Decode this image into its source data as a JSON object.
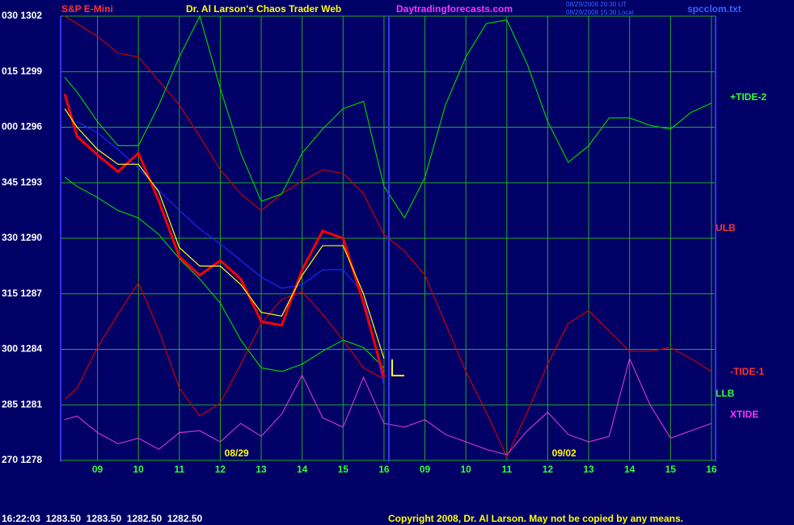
{
  "chart_data": {
    "type": "line",
    "title": "Dr. Al Larson's Chaos Trader Web",
    "symbol": "S&P E-Mini",
    "site": "Daytradingforecasts.com",
    "timestamps": [
      "08/29/2008 20:30 UT",
      "08/29/2008 15:30 Local"
    ],
    "file": "spcclom.txt",
    "quote": "16:22:03  1283.50  1283.50  1282.50  1282.50",
    "copyright": "Copyright 2008, Dr. Al Larson. May not be copied by any means.",
    "dates": [
      {
        "value": 3.4,
        "label": "08/29"
      },
      {
        "value": 11.4,
        "label": "09/02"
      }
    ],
    "annotations": [
      "ULB",
      "LLB"
    ],
    "grid": true,
    "xlim": [
      -0.9,
      15.1
    ],
    "xticks": [
      {
        "value": 0,
        "label": "09"
      },
      {
        "value": 1,
        "label": "10"
      },
      {
        "value": 2,
        "label": "11"
      },
      {
        "value": 3,
        "label": "12"
      },
      {
        "value": 4,
        "label": "13"
      },
      {
        "value": 5,
        "label": "14"
      },
      {
        "value": 6,
        "label": "15"
      },
      {
        "value": 7,
        "label": "16"
      },
      {
        "value": 8,
        "label": "09"
      },
      {
        "value": 9,
        "label": "10"
      },
      {
        "value": 10,
        "label": "11"
      },
      {
        "value": 11,
        "label": "12"
      },
      {
        "value": 12,
        "label": "13"
      },
      {
        "value": 13,
        "label": "14"
      },
      {
        "value": 14,
        "label": "15"
      },
      {
        "value": 15,
        "label": "16"
      }
    ],
    "ylim": [
      1278,
      1302
    ],
    "yticks": [
      {
        "value": 1278,
        "label": "270 1278"
      },
      {
        "value": 1281,
        "label": "285 1281"
      },
      {
        "value": 1284,
        "label": "300 1284"
      },
      {
        "value": 1287,
        "label": "315 1287"
      },
      {
        "value": 1290,
        "label": "330 1290"
      },
      {
        "value": 1293,
        "label": "345 1293"
      },
      {
        "value": 1296,
        "label": "000 1296"
      },
      {
        "value": 1299,
        "label": "015 1299"
      },
      {
        "value": 1302,
        "label": "030 1302"
      }
    ],
    "x": [
      -0.8,
      -0.5,
      0,
      0.5,
      1,
      1.5,
      2,
      2.5,
      3,
      3.5,
      4,
      4.5,
      5,
      5.5,
      6,
      6.5,
      7,
      7.5,
      8,
      8.5,
      9,
      9.5,
      10,
      10.5,
      11,
      11.5,
      12,
      12.5,
      13,
      13.5,
      14,
      14.5,
      15
    ],
    "series": [
      {
        "color": "#cc0000",
        "values": [
          1302,
          1301.6,
          1300.9,
          1300,
          1299.8,
          1298.5,
          1297.2,
          1295.5,
          1293.7,
          1292.4,
          1291.5,
          1292.4,
          1293.1,
          1293.7,
          1293.5,
          1292.4,
          1290.2,
          1289.3,
          1288,
          1285.4,
          1282.8,
          1280.6,
          1278.2,
          1280.6,
          1283.2,
          1285.4,
          1286.1,
          1285,
          1283.9,
          1283.9,
          1284.1,
          1283.5,
          1282.8
        ],
        "name": "-TIDE-1"
      },
      {
        "color": "#cc0000",
        "values": [
          1281.3,
          1281.9,
          1284.1,
          1285.9,
          1287.6,
          1285,
          1281.9,
          1280.4,
          1281.1,
          1283.2,
          1285.4,
          1286.7,
          1287.1,
          1285.9,
          1284.5,
          1283,
          1282.4,
          null,
          null,
          null,
          null,
          null,
          null,
          null,
          null,
          null,
          null,
          null,
          null,
          null,
          null,
          null,
          null
        ]
      },
      {
        "color": "#00cc00",
        "values": [
          1298.7,
          1297.9,
          1296.3,
          1295,
          1295,
          1297.2,
          1299.8,
          1302,
          1298.1,
          1294.6,
          1292,
          1292.4,
          1294.6,
          1295.9,
          1297,
          1297.4,
          1292.8,
          1291.1,
          1293.3,
          1297.2,
          1299.8,
          1301.6,
          1301.8,
          1299.4,
          1296.3,
          1294.1,
          1295,
          1296.5,
          1296.5,
          1296.1,
          1295.9,
          1296.8,
          1297.3
        ],
        "name": "+TIDE-2"
      },
      {
        "color": "#00cc00",
        "values": [
          1293.3,
          1292.8,
          1292.2,
          1291.5,
          1291.1,
          1290.2,
          1288.9,
          1287.8,
          1286.5,
          1284.5,
          1283,
          1282.8,
          1283.2,
          1283.9,
          1284.5,
          1284.1,
          1283,
          null,
          null,
          null,
          null,
          null,
          null,
          null,
          null,
          null,
          null,
          null,
          null,
          null,
          null,
          null,
          null
        ]
      },
      {
        "color": "#2222ff",
        "values": [
          null,
          1296.3,
          1295.7,
          1294.8,
          1293.8,
          1292.6,
          1291.5,
          1290.5,
          1289.7,
          1288.8,
          1287.9,
          1287.3,
          1287.5,
          1288.3,
          1288.3,
          1287,
          1282,
          null,
          null,
          null,
          null,
          null,
          null,
          null,
          null,
          null,
          null,
          null,
          null,
          null,
          null,
          null,
          null
        ]
      },
      {
        "color": "#cc33cc",
        "values": [
          1280.2,
          1280.4,
          1279.5,
          1278.9,
          1279.2,
          1278.6,
          1279.5,
          1279.6,
          1279,
          1280,
          1279.3,
          1280.5,
          1282.6,
          1280.3,
          1279.8,
          1282.5,
          1280,
          1279.8,
          1280.2,
          1279.4,
          1279,
          1278.6,
          1278.3,
          1279.6,
          1280.6,
          1279.4,
          1279,
          1279.3,
          1283.5,
          1281,
          1279.2,
          1279.6,
          1280
        ],
        "name": "XTIDE"
      },
      {
        "color": "#ff0000",
        "values": [
          1297.8,
          1295.5,
          1294.5,
          1293.6,
          1294.6,
          1292,
          1289,
          1288,
          1288.8,
          1287.8,
          1285.5,
          1285.3,
          1288.3,
          1290.4,
          1290,
          1286.5,
          1282.5,
          null,
          null,
          null,
          null,
          null,
          null,
          null,
          null,
          null,
          null,
          null,
          null,
          null,
          null,
          null,
          null
        ]
      },
      {
        "color": "#ffff00",
        "values": [
          1297,
          1296,
          1294.8,
          1294,
          1294,
          1292.5,
          1289.5,
          1288.5,
          1288.5,
          1287.5,
          1286,
          1285.8,
          1288,
          1289.6,
          1289.6,
          1287,
          1283.5,
          null,
          null,
          null,
          null,
          null,
          null,
          null,
          null,
          null,
          null,
          null,
          null,
          null,
          null,
          null,
          null
        ]
      }
    ]
  }
}
